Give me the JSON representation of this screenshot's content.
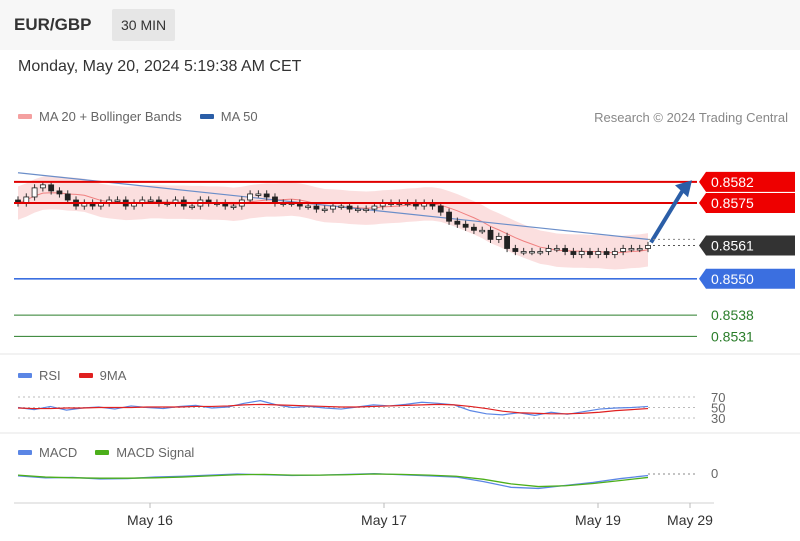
{
  "header": {
    "pair": "EUR/GBP",
    "timeframe": "30 MIN"
  },
  "timestamp": "Monday, May 20, 2024 5:19:38 AM CET",
  "legend_main": [
    {
      "label": "MA 20 + Bollinger Bands",
      "color": "#f08080"
    },
    {
      "label": "MA 50",
      "color": "#2b5ea7"
    }
  ],
  "credit": "Research © 2024 Trading Central",
  "legend_rsi": [
    {
      "label": "RSI",
      "color": "#5b86e5"
    },
    {
      "label": "9MA",
      "color": "#e02020"
    }
  ],
  "legend_macd": [
    {
      "label": "MACD",
      "color": "#5b86e5"
    },
    {
      "label": "MACD Signal",
      "color": "#4caf1a"
    }
  ],
  "chart_data": [
    {
      "type": "line",
      "panel": "price",
      "ylim": [
        0.85265,
        0.85925
      ],
      "x_labels": [
        "May 16",
        "May 17",
        "May 19",
        "May 29"
      ],
      "candles_close": [
        0.8575,
        0.8577,
        0.858,
        0.8581,
        0.8579,
        0.8578,
        0.8576,
        0.8574,
        0.8575,
        0.8574,
        0.8575,
        0.8576,
        0.8576,
        0.8574,
        0.8575,
        0.8576,
        0.8576,
        0.8575,
        0.8575,
        0.8576,
        0.8574,
        0.8574,
        0.8576,
        0.8575,
        0.8575,
        0.8574,
        0.8574,
        0.8576,
        0.8578,
        0.8578,
        0.8577,
        0.8575,
        0.8575,
        0.8575,
        0.8574,
        0.8574,
        0.8573,
        0.8573,
        0.8574,
        0.8574,
        0.8573,
        0.8573,
        0.8573,
        0.8574,
        0.8575,
        0.8575,
        0.8575,
        0.8575,
        0.8574,
        0.8575,
        0.8574,
        0.8572,
        0.8569,
        0.8568,
        0.8567,
        0.8566,
        0.8566,
        0.8563,
        0.8564,
        0.856,
        0.8559,
        0.8559,
        0.8559,
        0.8559,
        0.856,
        0.856,
        0.8559,
        0.8558,
        0.8559,
        0.8558,
        0.8559,
        0.8558,
        0.8559,
        0.856,
        0.856,
        0.856,
        0.8561
      ],
      "levels": [
        {
          "value": 0.8582,
          "label": "0.8582",
          "kind": "resistance"
        },
        {
          "value": 0.8575,
          "label": "0.8575",
          "kind": "resistance"
        },
        {
          "value": 0.8561,
          "label": "0.8561",
          "kind": "current"
        },
        {
          "value": 0.855,
          "label": "0.8550",
          "kind": "pivot"
        },
        {
          "value": 0.8538,
          "label": "0.8538",
          "kind": "support"
        },
        {
          "value": 0.8531,
          "label": "0.8531",
          "kind": "support"
        }
      ],
      "ma50": [
        [
          0,
          0.8585
        ],
        [
          76,
          0.8563
        ]
      ]
    },
    {
      "type": "line",
      "panel": "rsi",
      "levels": [
        "70",
        "50",
        "30"
      ],
      "series": [
        {
          "name": "RSI",
          "values": [
            50,
            46,
            52,
            45,
            49,
            51,
            47,
            53,
            50,
            48,
            52,
            54,
            49,
            51,
            58,
            63,
            55,
            50,
            52,
            49,
            47,
            51,
            55,
            53,
            56,
            60,
            58,
            55,
            44,
            38,
            36,
            40,
            35,
            41,
            37,
            42,
            47,
            49,
            50,
            52
          ]
        },
        {
          "name": "9MA",
          "values": [
            49,
            48,
            48,
            49,
            49,
            50,
            50,
            50,
            51,
            51,
            51,
            52,
            52,
            53,
            55,
            56,
            55,
            54,
            53,
            52,
            51,
            51,
            52,
            53,
            54,
            55,
            56,
            55,
            52,
            48,
            43,
            40,
            39,
            38,
            38,
            39,
            41,
            44,
            46,
            48
          ]
        }
      ]
    },
    {
      "type": "line",
      "panel": "macd",
      "levels": [
        "0"
      ],
      "series": [
        {
          "name": "MACD",
          "values": [
            -5,
            -10,
            -9,
            -13,
            -12,
            -8,
            -6,
            -3,
            0,
            -2,
            -4,
            -3,
            -1,
            1,
            -2,
            -5,
            -8,
            -20,
            -35,
            -38,
            -30,
            -22,
            -12,
            -4
          ]
        },
        {
          "name": "MACD Signal",
          "values": [
            -3,
            -8,
            -10,
            -11,
            -11,
            -10,
            -8,
            -5,
            -2,
            -1,
            -3,
            -3,
            -2,
            0,
            -1,
            -3,
            -6,
            -14,
            -26,
            -33,
            -31,
            -25,
            -17,
            -9
          ]
        }
      ]
    }
  ]
}
